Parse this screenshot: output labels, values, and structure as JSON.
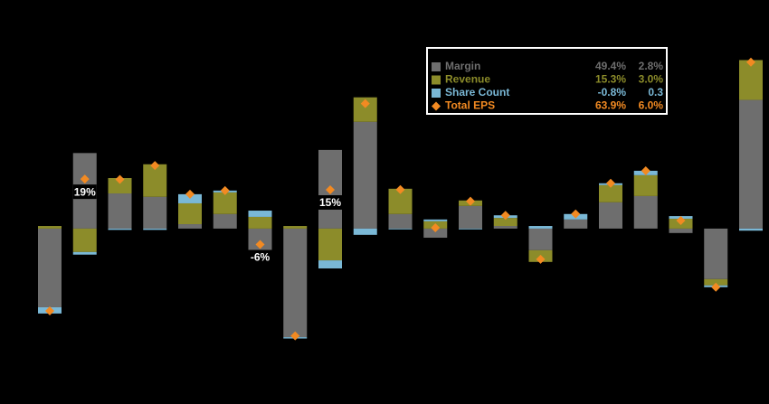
{
  "chart_data": {
    "type": "stacked_bar",
    "categories": [
      null,
      null,
      null,
      null,
      null,
      null,
      null,
      null,
      null,
      null,
      null,
      null,
      null,
      null,
      null,
      null,
      null,
      null,
      null,
      null,
      null
    ],
    "ylim": [
      -45,
      70
    ],
    "series": [
      {
        "name": "Margin",
        "color": "#6e6e6e",
        "kind": "bar",
        "values": [
          -30.2,
          29,
          13.5,
          12.2,
          1.7,
          5.6,
          -13.0,
          -41.7,
          30.2,
          41.0,
          5.6,
          -3.5,
          8.7,
          1.0,
          -8.3,
          3.5,
          10.1,
          12.5,
          -1.7,
          -19.4,
          49.4
        ]
      },
      {
        "name": "Revenue",
        "color": "#8c8c2a",
        "kind": "bar",
        "values": [
          1.0,
          -9,
          5.9,
          12.5,
          8.0,
          8.3,
          4.5,
          1.0,
          -12.2,
          9.4,
          9.7,
          2.8,
          2.1,
          3.1,
          -4.5,
          0,
          6.6,
          8.0,
          3.8,
          -2.4,
          15.3
        ]
      },
      {
        "name": "Share Count",
        "color": "#7ab8d6",
        "kind": "bar",
        "values": [
          -2.4,
          -1,
          -0.5,
          -0.5,
          3.5,
          0.7,
          2.4,
          -0.5,
          -3.1,
          -2.4,
          -0.3,
          0.7,
          -0.3,
          1.0,
          1.0,
          2.1,
          0.7,
          1.7,
          1.0,
          -0.7,
          -0.8
        ]
      },
      {
        "name": "Total EPS",
        "color": "#f28a22",
        "kind": "diamond",
        "values": [
          -31.6,
          19.0,
          18.9,
          24.2,
          13.2,
          14.6,
          -6.1,
          -41.2,
          14.9,
          48.0,
          15.0,
          0.3,
          10.5,
          5.1,
          -11.8,
          5.6,
          17.4,
          22.2,
          3.1,
          -22.5,
          63.9
        ],
        "value_labels": [
          null,
          "19%",
          null,
          null,
          null,
          null,
          "-6%",
          null,
          "15%",
          null,
          null,
          null,
          null,
          null,
          null,
          null,
          null,
          null,
          null,
          null,
          null
        ]
      }
    ],
    "legend_values": [
      [
        "49.4%",
        "2.8%"
      ],
      [
        "15.3%",
        "3.0%"
      ],
      [
        "-0.8%",
        "0.3"
      ],
      [
        "63.9%",
        "6.0%"
      ]
    ]
  }
}
